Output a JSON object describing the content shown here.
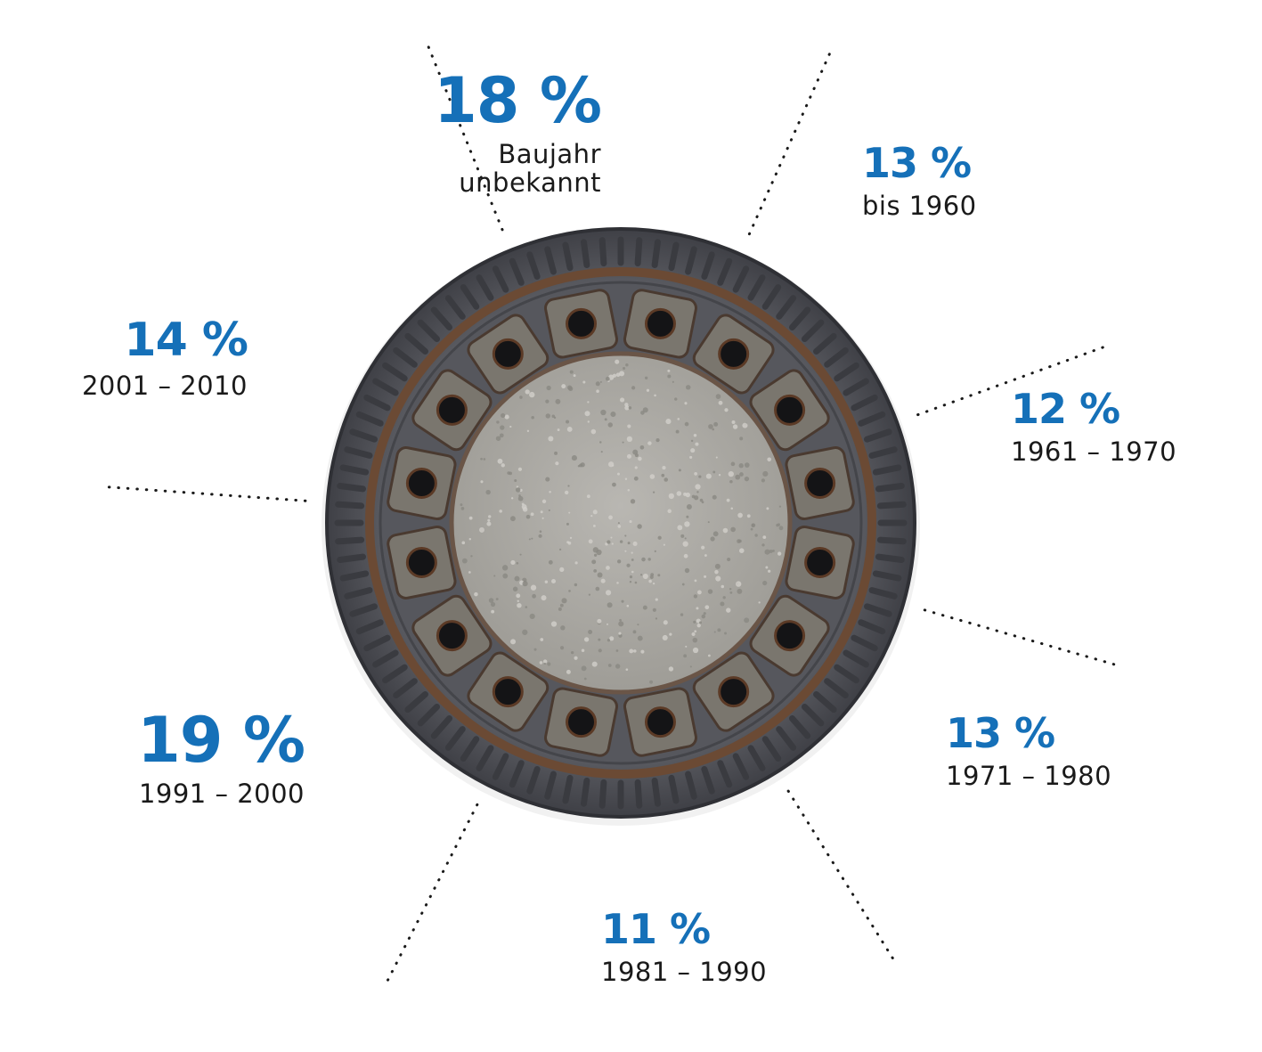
{
  "chart_data": {
    "type": "pie",
    "title": "",
    "unit": "%",
    "segments": [
      {
        "label": "Baujahr unbekannt",
        "value": 18,
        "value_label": "18 %"
      },
      {
        "label": "bis 1960",
        "value": 13,
        "value_label": "13 %"
      },
      {
        "label": "1961 – 1970",
        "value": 12,
        "value_label": "12 %"
      },
      {
        "label": "1971 – 1980",
        "value": 13,
        "value_label": "13 %"
      },
      {
        "label": "1981 – 1990",
        "value": 11,
        "value_label": "11 %"
      },
      {
        "label": "1991 – 2000",
        "value": 19,
        "value_label": "19 %"
      },
      {
        "label": "2001 – 2010",
        "value": 14,
        "value_label": "14 %"
      }
    ],
    "colors": {
      "value_text": "#1570b8",
      "category_text": "#1a1a1a",
      "separator": "#1a1a1a"
    },
    "center_image": "manhole-cover-icon",
    "separators": "dotted"
  }
}
